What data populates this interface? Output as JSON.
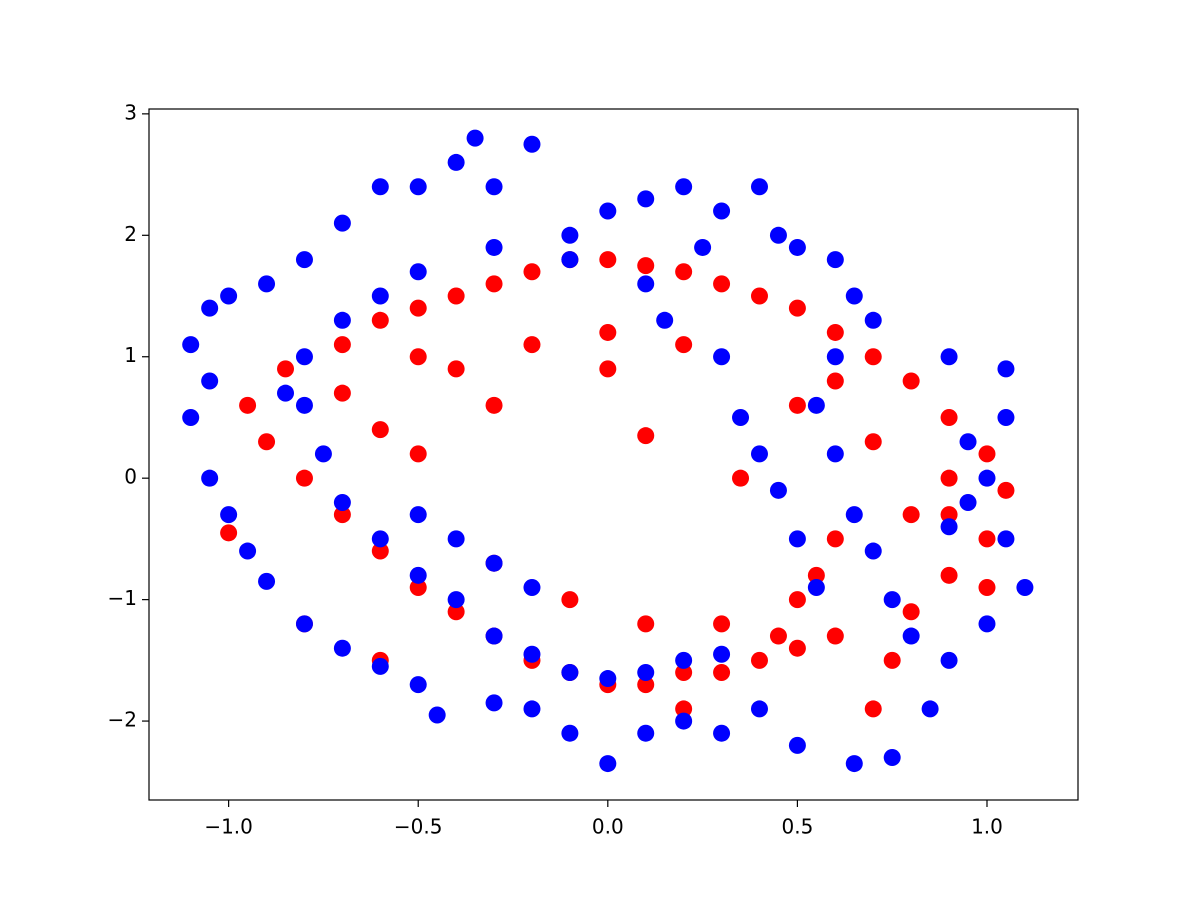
{
  "chart_data": {
    "type": "scatter",
    "xlim": [
      -1.21,
      1.24
    ],
    "ylim": [
      -2.65,
      3.04
    ],
    "xticks": [
      {
        "value": -1,
        "label": "−1.0"
      },
      {
        "value": -0.5,
        "label": "−0.5"
      },
      {
        "value": 0,
        "label": "0.0"
      },
      0.5,
      {
        "value": 1,
        "label": "1.0"
      }
    ],
    "yticks": [
      {
        "value": -2,
        "label": "−2"
      },
      {
        "value": -1,
        "label": "−1"
      },
      0,
      1,
      2,
      3
    ],
    "series": [
      {
        "color": "red",
        "x": [
          -0.6,
          -0.5,
          -0.4,
          -0.3,
          -0.2,
          -0.1,
          0,
          0.1,
          0.2,
          0.3,
          0.4,
          0.5,
          0.6,
          0.7,
          0.8,
          0.9,
          1.0,
          1.05,
          1.0,
          0.9,
          0.8,
          0.6,
          0.5,
          0.5,
          0.4,
          0.3,
          0.2,
          0.1,
          0,
          -0.1,
          -0.2,
          -0.3,
          -0.4,
          -0.5,
          -0.6,
          -0.7,
          -0.8,
          -0.9,
          -0.95,
          -0.85,
          -0.7,
          -0.4,
          -0.2,
          0,
          0.2,
          -0.6,
          -0.5,
          0.1,
          0.3,
          0.1,
          -0.1,
          -0.3,
          0.7,
          0.8,
          0.6,
          0.9,
          -1.0,
          -0.8,
          -0.6,
          0.2,
          0.7,
          0.9,
          1.0,
          0.55,
          0.45,
          -0.3,
          0.0,
          0.5,
          0.6,
          -0.7,
          -0.5,
          0.35,
          0.75
        ],
        "y": [
          1.3,
          1.4,
          1.5,
          1.6,
          1.7,
          1.8,
          1.8,
          1.75,
          1.7,
          1.6,
          1.5,
          1.4,
          1.2,
          1.0,
          0.8,
          0.5,
          0.2,
          -0.1,
          -0.5,
          -0.8,
          -1.1,
          -1.3,
          -1.0,
          -1.4,
          -1.5,
          -1.6,
          -1.6,
          -1.7,
          -1.7,
          -1.6,
          -1.5,
          -1.3,
          -1.1,
          -0.9,
          -0.6,
          -0.3,
          0,
          0.3,
          0.6,
          0.9,
          1.1,
          0.9,
          1.1,
          1.2,
          1.1,
          0.4,
          0.2,
          0.35,
          -1.2,
          -1.2,
          -1.0,
          -0.7,
          0.3,
          -0.3,
          -0.5,
          0.0,
          -0.45,
          -1.2,
          -1.5,
          -1.9,
          -1.9,
          -0.3,
          -0.9,
          -0.8,
          -1.3,
          0.6,
          0.9,
          0.6,
          0.8,
          0.7,
          1.0,
          0.0,
          -1.5
        ]
      },
      {
        "color": "blue",
        "x": [
          -1.1,
          -1.05,
          -1.0,
          -0.9,
          -0.8,
          -0.7,
          -0.6,
          -0.5,
          -0.4,
          -0.35,
          -0.2,
          -0.3,
          -0.1,
          0,
          0.1,
          0.2,
          0.3,
          0.4,
          0.45,
          0.5,
          0.6,
          0.65,
          0.7,
          0.6,
          0.55,
          0.6,
          0.65,
          0.7,
          0.75,
          0.8,
          0.9,
          1.0,
          1.1,
          1.05,
          1.0,
          1.05,
          1.05,
          0.95,
          0.9,
          0.85,
          0.75,
          0.65,
          0.5,
          0.4,
          0.3,
          0.2,
          0.1,
          0,
          -0.1,
          -0.2,
          -0.3,
          -0.45,
          -0.5,
          -0.6,
          -0.7,
          -0.8,
          -0.9,
          -0.95,
          -1.0,
          -1.05,
          -1.1,
          -1.05,
          -0.8,
          -0.75,
          -0.7,
          -0.6,
          -0.5,
          -0.4,
          -0.3,
          -0.2,
          -0.1,
          0,
          0.1,
          0.2,
          0.3,
          -0.5,
          -0.4,
          -0.3,
          -0.2,
          0.3,
          0.35,
          0.4,
          0.45,
          0.5,
          0.55,
          -0.6,
          -0.5,
          -0.3,
          -0.1,
          0.1,
          -0.7,
          -0.8,
          -0.85,
          0.9,
          0.95,
          0.25,
          0.15
        ],
        "y": [
          1.1,
          1.4,
          1.5,
          1.6,
          1.8,
          2.1,
          2.4,
          2.4,
          2.6,
          2.8,
          2.75,
          2.4,
          2.0,
          2.2,
          2.3,
          2.4,
          2.2,
          2.4,
          2.0,
          1.9,
          1.8,
          1.5,
          1.3,
          1.0,
          0.6,
          0.2,
          -0.3,
          -0.6,
          -1.0,
          -1.3,
          -1.5,
          -1.2,
          -0.9,
          -0.5,
          0.0,
          0.5,
          0.9,
          0.3,
          -0.4,
          -1.9,
          -2.3,
          -2.35,
          -2.2,
          -1.9,
          -2.1,
          -2.0,
          -2.1,
          -2.35,
          -2.1,
          -1.9,
          -1.85,
          -1.95,
          -1.7,
          -1.55,
          -1.4,
          -1.2,
          -0.85,
          -0.6,
          -0.3,
          0,
          0.5,
          0.8,
          0.6,
          0.2,
          -0.2,
          -0.5,
          -0.8,
          -1.0,
          -1.3,
          -1.45,
          -1.6,
          -1.65,
          -1.6,
          -1.5,
          -1.45,
          -0.3,
          -0.5,
          -0.7,
          -0.9,
          1.0,
          0.5,
          0.2,
          -0.1,
          -0.5,
          -0.9,
          1.5,
          1.7,
          1.9,
          1.8,
          1.6,
          1.3,
          1.0,
          0.7,
          1.0,
          -0.2,
          1.9,
          1.3
        ]
      }
    ]
  }
}
